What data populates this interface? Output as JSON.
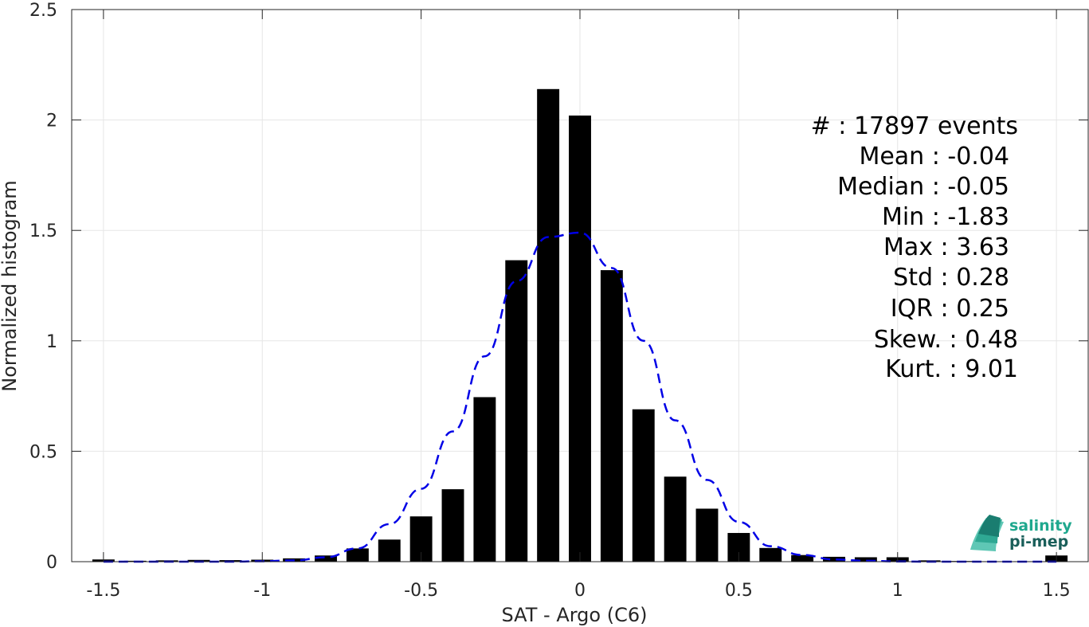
{
  "chart_data": {
    "type": "bar",
    "xlabel": "SAT - Argo (C6)",
    "ylabel": "Normalized histogram",
    "xlim": [
      -1.6,
      1.6
    ],
    "ylim": [
      0,
      2.5
    ],
    "xticks": [
      -1.5,
      -1,
      -0.5,
      0,
      0.5,
      1,
      1.5
    ],
    "xtick_labels": [
      "-1.5",
      "-1",
      "-0.5",
      "0",
      "0.5",
      "1",
      "1.5"
    ],
    "yticks": [
      0,
      0.5,
      1,
      1.5,
      2,
      2.5
    ],
    "ytick_labels": [
      "0",
      "0.5",
      "1",
      "1.5",
      "2",
      "2.5"
    ],
    "grid": true,
    "bar_width": 0.07,
    "bars": {
      "x": [
        -1.5,
        -1.4,
        -1.3,
        -1.2,
        -1.1,
        -1.0,
        -0.9,
        -0.8,
        -0.7,
        -0.6,
        -0.5,
        -0.4,
        -0.3,
        -0.2,
        -0.1,
        0.0,
        0.1,
        0.2,
        0.3,
        0.4,
        0.5,
        0.6,
        0.7,
        0.8,
        0.9,
        1.0,
        1.1,
        1.2,
        1.3,
        1.4,
        1.5
      ],
      "values": [
        0.01,
        0.004,
        0.006,
        0.008,
        0.007,
        0.009,
        0.015,
        0.028,
        0.06,
        0.1,
        0.205,
        0.328,
        0.745,
        1.365,
        2.14,
        2.02,
        1.32,
        0.69,
        0.385,
        0.24,
        0.13,
        0.062,
        0.03,
        0.022,
        0.02,
        0.02,
        0.006,
        0.003,
        0.002,
        0.002,
        0.028
      ]
    },
    "fit_curve": {
      "style": "dashed",
      "color": "#0000e6",
      "x": [
        -1.5,
        -1.4,
        -1.3,
        -1.2,
        -1.1,
        -1.0,
        -0.9,
        -0.8,
        -0.7,
        -0.6,
        -0.5,
        -0.4,
        -0.3,
        -0.2,
        -0.1,
        0.0,
        0.1,
        0.2,
        0.3,
        0.4,
        0.5,
        0.6,
        0.7,
        0.8,
        0.9,
        1.0,
        1.1,
        1.2,
        1.3,
        1.4,
        1.5
      ],
      "y": [
        0.0,
        0.0,
        0.0,
        0.0,
        0.0,
        0.002,
        0.006,
        0.02,
        0.06,
        0.17,
        0.33,
        0.59,
        0.93,
        1.27,
        1.47,
        1.49,
        1.33,
        1.0,
        0.64,
        0.37,
        0.18,
        0.07,
        0.03,
        0.01,
        0.004,
        0.001,
        0.0,
        0.0,
        0.0,
        0.0,
        0.0
      ]
    },
    "bar_color": "#000000"
  },
  "stats": {
    "events": "#  : 17897 events",
    "mean": "Mean : -0.04",
    "median": "Median : -0.05",
    "min": "Min : -1.83",
    "max": "Max : 3.63",
    "std": "Std : 0.28",
    "iqr": "IQR : 0.25",
    "skew": "Skew. : 0.48",
    "kurt": "Kurt. : 9.01"
  },
  "logo": {
    "line1": "salinity",
    "line2": "pi-mep",
    "color1": "#1fa88e",
    "color2": "#1a5f5a"
  }
}
